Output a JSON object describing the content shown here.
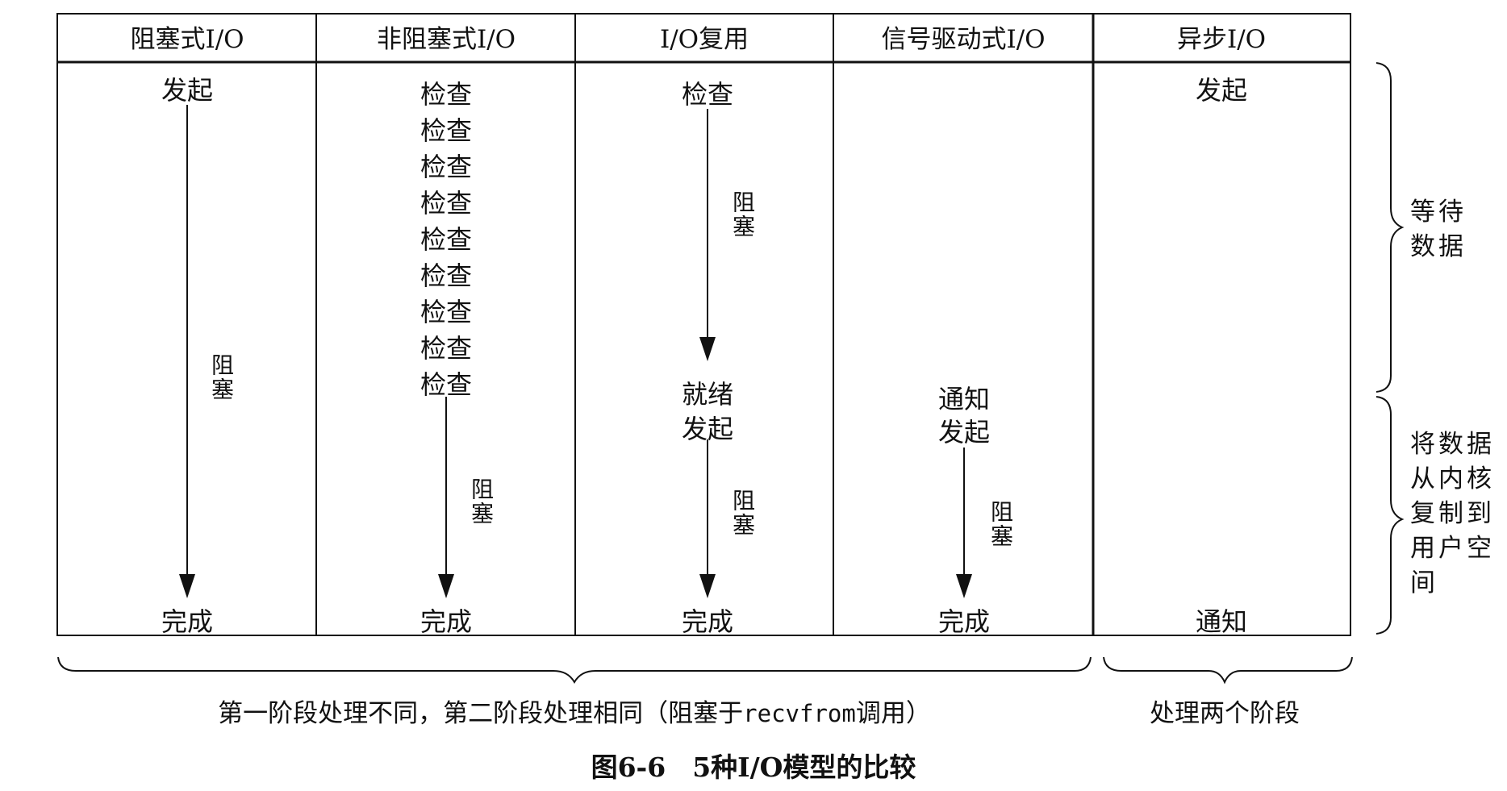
{
  "headers": [
    "阻塞式I/O",
    "非阻塞式I/O",
    "I/O复用",
    "信号驱动式I/O",
    "异步I/O"
  ],
  "col_blocking": {
    "start": "发起",
    "block": "阻塞",
    "end": "完成"
  },
  "col_nonblocking": {
    "checks": [
      "检查",
      "检查",
      "检查",
      "检查",
      "检查",
      "检查",
      "检查",
      "检查",
      "检查"
    ],
    "block": "阻塞",
    "end": "完成"
  },
  "col_multiplex": {
    "check": "检查",
    "block1": "阻塞",
    "ready": "就绪",
    "start": "发起",
    "block2": "阻塞",
    "end": "完成"
  },
  "col_signal": {
    "notify": "通知",
    "start": "发起",
    "block": "阻塞",
    "end": "完成"
  },
  "col_async": {
    "start": "发起",
    "notify": "通知"
  },
  "side_labels": {
    "wait": "等待数据",
    "copy": "将数据从内核复制到用户空间"
  },
  "bottom": {
    "left_prefix": "第一阶段处理不同，第二阶段处理相同（阻塞于",
    "left_code": "recvfrom",
    "left_suffix": "调用）",
    "right": "处理两个阶段"
  },
  "figure_caption": "图6-6　5种I/O模型的比较"
}
